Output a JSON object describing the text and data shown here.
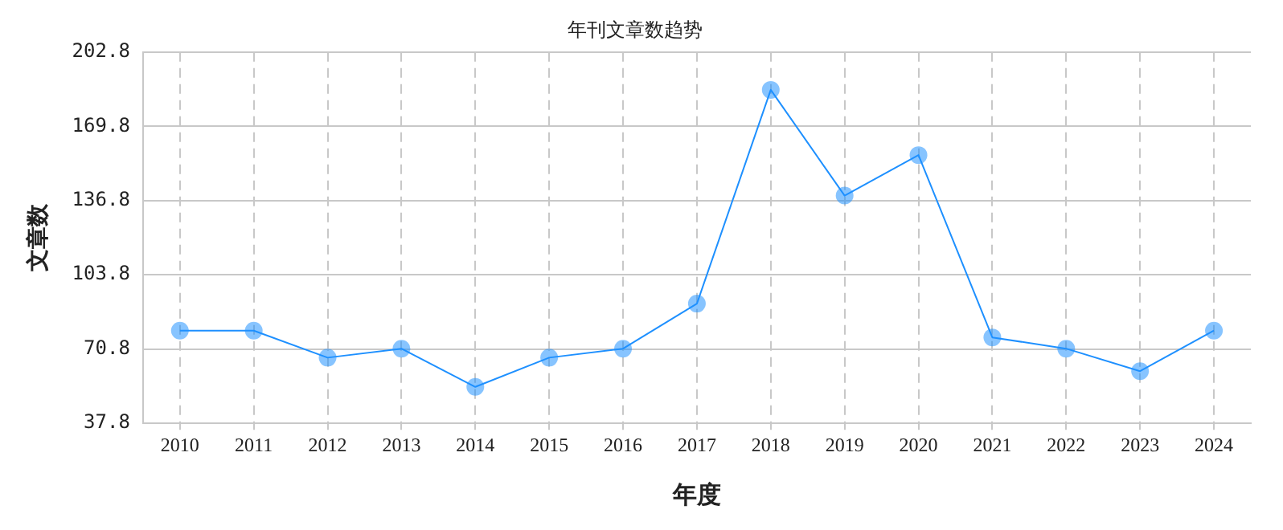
{
  "chart_data": {
    "type": "line",
    "title": "年刊文章数趋势",
    "xlabel": "年度",
    "ylabel": "文章数",
    "categories": [
      "2010",
      "2011",
      "2012",
      "2013",
      "2014",
      "2015",
      "2016",
      "2017",
      "2018",
      "2019",
      "2020",
      "2021",
      "2022",
      "2023",
      "2024"
    ],
    "series": [
      {
        "color": "#1e90ff",
        "values": [
          79,
          79,
          67,
          71,
          54,
          67,
          71,
          91,
          186,
          139,
          157,
          76,
          71,
          61,
          79
        ]
      }
    ],
    "ylim": [
      37.8,
      202.8
    ],
    "yticks": [
      37.8,
      70.8,
      103.8,
      136.8,
      169.8,
      202.8
    ],
    "grid": true,
    "legend": false,
    "marker": "circle",
    "line_style": "solid"
  }
}
